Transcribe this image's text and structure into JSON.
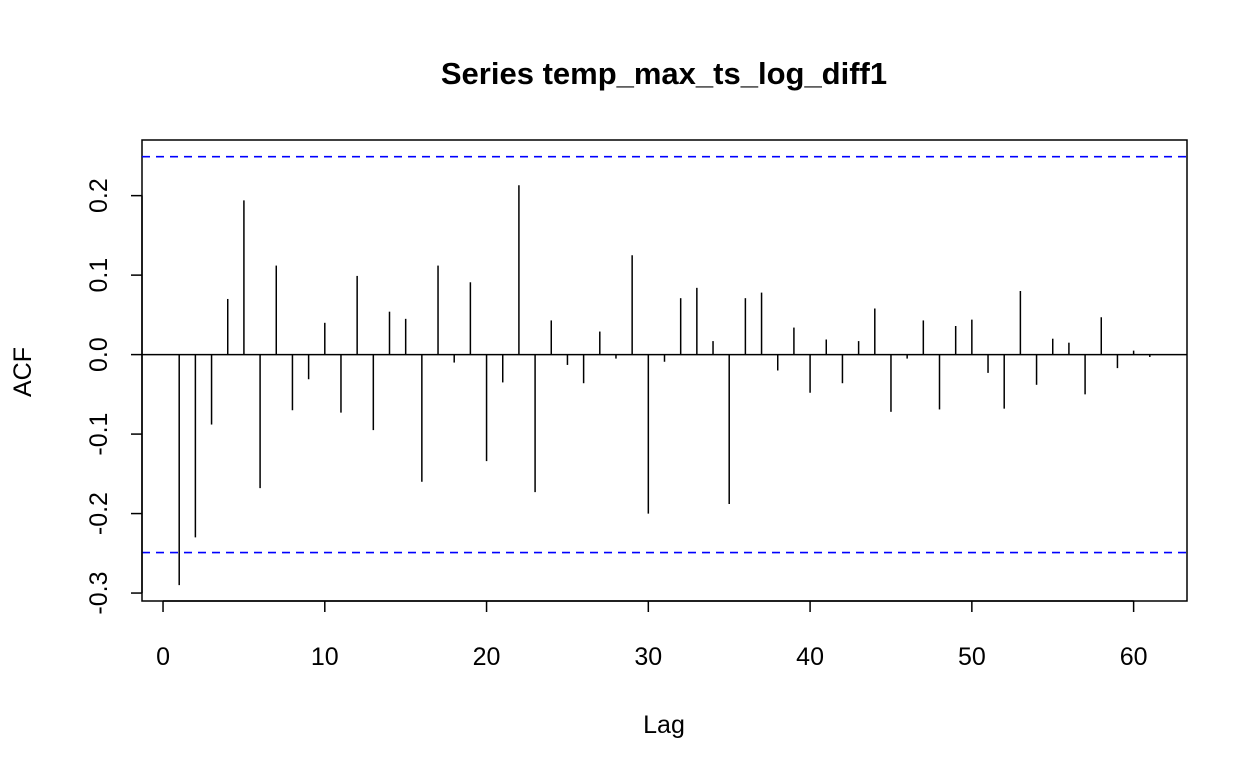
{
  "chart_data": {
    "type": "bar",
    "title": "Series temp_max_ts_log_diff1",
    "xlabel": "Lag",
    "ylabel": "ACF",
    "xlim": [
      -1.3,
      63.3
    ],
    "ylim": [
      -0.31,
      0.27
    ],
    "xticks": [
      0,
      10,
      20,
      30,
      40,
      50,
      60
    ],
    "xtick_labels": [
      "0",
      "10",
      "20",
      "30",
      "40",
      "50",
      "60"
    ],
    "yticks": [
      -0.3,
      -0.2,
      -0.1,
      0.0,
      0.1,
      0.2
    ],
    "ytick_labels": [
      "-0.3",
      "-0.2",
      "-0.1",
      "0.0",
      "0.1",
      "0.2"
    ],
    "confidence_bounds": [
      0.249,
      -0.249
    ],
    "confidence_color": "#0000ff",
    "grid": false,
    "lags": [
      1,
      2,
      3,
      4,
      5,
      6,
      7,
      8,
      9,
      10,
      11,
      12,
      13,
      14,
      15,
      16,
      17,
      18,
      19,
      20,
      21,
      22,
      23,
      24,
      25,
      26,
      27,
      28,
      29,
      30,
      31,
      32,
      33,
      34,
      35,
      36,
      37,
      38,
      39,
      40,
      41,
      42,
      43,
      44,
      45,
      46,
      47,
      48,
      49,
      50,
      51,
      52,
      53,
      54,
      55,
      56,
      57,
      58,
      59,
      60,
      61
    ],
    "values": [
      -0.29,
      -0.23,
      -0.088,
      0.07,
      0.194,
      -0.168,
      0.112,
      -0.07,
      -0.031,
      0.04,
      -0.073,
      0.099,
      -0.095,
      0.054,
      0.045,
      -0.16,
      0.112,
      -0.01,
      0.091,
      -0.134,
      -0.035,
      0.213,
      -0.173,
      0.043,
      -0.013,
      -0.036,
      0.029,
      -0.005,
      0.125,
      -0.2,
      -0.009,
      0.071,
      0.084,
      0.017,
      -0.188,
      0.071,
      0.078,
      -0.02,
      0.034,
      -0.048,
      0.019,
      -0.036,
      0.017,
      0.058,
      -0.072,
      -0.005,
      0.043,
      -0.069,
      0.036,
      0.044,
      -0.023,
      -0.068,
      0.08,
      -0.038,
      0.02,
      0.015,
      -0.05,
      0.047,
      -0.017,
      0.005,
      -0.003
    ]
  }
}
